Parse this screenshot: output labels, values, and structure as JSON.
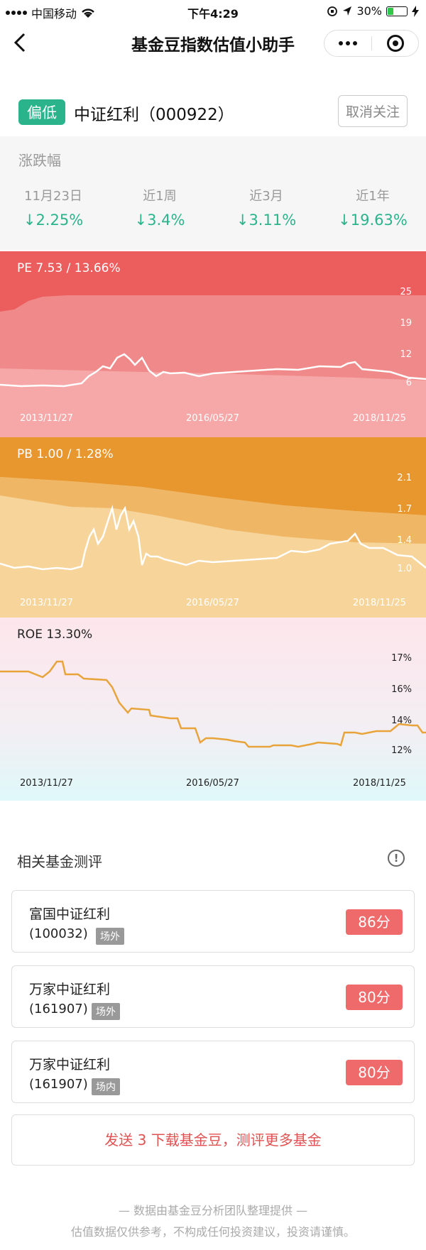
{
  "status_bar": {
    "carrier": "中国移动",
    "time": "下午4:29",
    "battery": "30%",
    "battery_level": 0.3
  },
  "nav": {
    "title": "基金豆指数估值小助手",
    "back_icon": "back-arrow-icon",
    "more_icon": "more-dots-icon",
    "close_icon": "target-close-icon"
  },
  "index": {
    "tag": "偏低",
    "name": "中证红利（000922）",
    "unfollow_label": "取消关注",
    "tag_color": "#2bb48c"
  },
  "change": {
    "title": "涨跌幅",
    "items": [
      {
        "label": "11月23日",
        "value": "2.25%"
      },
      {
        "label": "近1周",
        "value": "3.4%"
      },
      {
        "label": "近3月",
        "value": "3.11%"
      },
      {
        "label": "近1年",
        "value": "19.63%"
      }
    ],
    "direction_icon": "down-arrow-icon",
    "color": "#2bb48c"
  },
  "charts": {
    "pe": {
      "title": "PE 7.53 / 13.66%",
      "y_ticks": [
        "25",
        "19",
        "12",
        "6"
      ],
      "x_ticks": [
        "2013/11/27",
        "2016/05/27",
        "2018/11/25"
      ]
    },
    "pb": {
      "title": "PB 1.00 / 1.28%",
      "y_ticks": [
        "2.1",
        "1.7",
        "1.4",
        "1.0"
      ],
      "x_ticks": [
        "2013/11/27",
        "2016/05/27",
        "2018/11/25"
      ]
    },
    "roe": {
      "title": "ROE 13.30%",
      "y_ticks": [
        "17%",
        "16%",
        "14%",
        "12%"
      ],
      "x_ticks": [
        "2013/11/27",
        "2016/05/27",
        "2018/11/25"
      ]
    }
  },
  "related": {
    "title": "相关基金测评",
    "info_icon": "info-icon",
    "funds": [
      {
        "name": "富国中证红利",
        "code": "(100032)",
        "badge": "场外",
        "score": "86分"
      },
      {
        "name": "万家中证红利",
        "code": "(161907)",
        "badge": "场外",
        "score": "80分"
      },
      {
        "name": "万家中证红利",
        "code": "(161907)",
        "badge": "场内",
        "score": "80分"
      }
    ],
    "cta": "发送 3 下载基金豆，测评更多基金"
  },
  "footer": {
    "line1": "— 数据由基金豆分析团队整理提供 —",
    "line2": "估值数据仅供参考，不构成任何投资建议，投资请谨慎。"
  }
}
